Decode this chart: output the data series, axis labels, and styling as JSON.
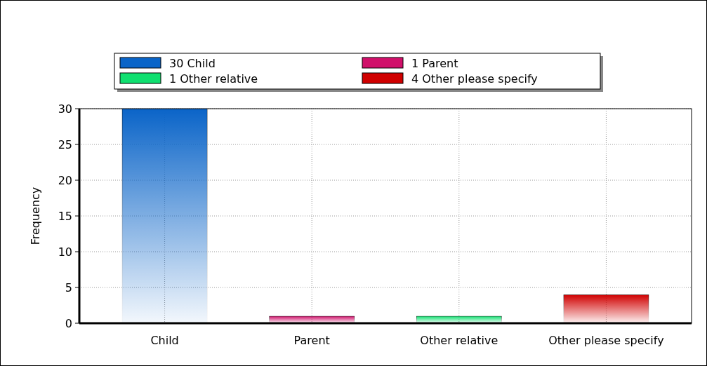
{
  "chart_data": {
    "type": "bar",
    "ylabel": "Frequency",
    "categories": [
      "Child",
      "Parent",
      "Other relative",
      "Other please specify"
    ],
    "series": [
      {
        "name": "30 Child",
        "color": "#0a64c8",
        "values": [
          30,
          null,
          null,
          null
        ]
      },
      {
        "name": "1 Parent",
        "color": "#d0106a",
        "values": [
          null,
          1,
          null,
          null
        ]
      },
      {
        "name": "1 Other relative",
        "color": "#10e070",
        "values": [
          null,
          null,
          1,
          null
        ]
      },
      {
        "name": "4 Other please specify",
        "color": "#d00000",
        "values": [
          null,
          null,
          null,
          4
        ]
      }
    ],
    "ylim": [
      0,
      30
    ],
    "yticks": [
      0,
      5,
      10,
      15,
      20,
      25,
      30
    ],
    "grid": true,
    "legend": "top"
  }
}
